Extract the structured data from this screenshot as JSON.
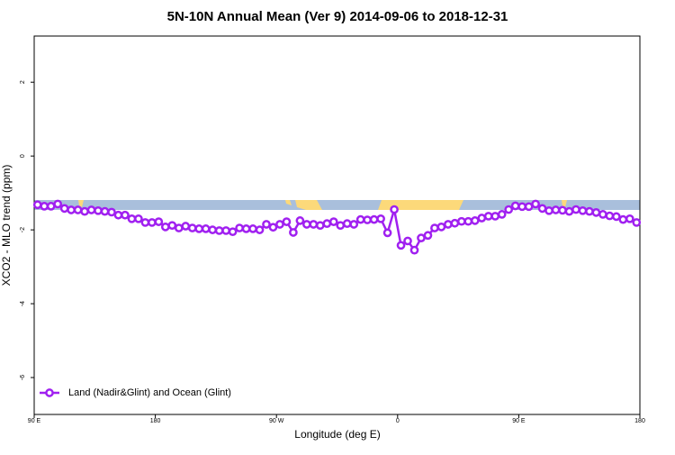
{
  "chart_data": {
    "type": "line",
    "title": "5N-10N Annual Mean (Ver 9)   2014-09-06 to 2018-12-31",
    "xlabel": "Longitude (deg E)",
    "ylabel": "XCO2 - MLO trend (ppm)",
    "xlim": [
      90,
      540
    ],
    "ylim": [
      -7,
      3.25
    ],
    "xticks": [
      {
        "value": 90,
        "label": "90 E"
      },
      180,
      {
        "value": 270,
        "label": "90 W"
      },
      {
        "value": 360,
        "label": "0"
      },
      {
        "value": 450,
        "label": "90 E"
      },
      {
        "value": 540,
        "label": "180"
      }
    ],
    "yticks": [
      -6,
      -4,
      -2,
      0,
      2
    ],
    "legend": "lower left",
    "x": [
      92.5,
      97.5,
      102.5,
      107.5,
      112.5,
      117.5,
      122.5,
      127.5,
      132.5,
      137.5,
      142.5,
      147.5,
      152.5,
      157.5,
      162.5,
      167.5,
      172.5,
      177.5,
      182.5,
      187.5,
      192.5,
      197.5,
      202.5,
      207.5,
      212.5,
      217.5,
      222.5,
      227.5,
      232.5,
      237.5,
      242.5,
      247.5,
      252.5,
      257.5,
      262.5,
      267.5,
      272.5,
      277.5,
      282.5,
      287.5,
      292.5,
      297.5,
      302.5,
      307.5,
      312.5,
      317.5,
      322.5,
      327.5,
      332.5,
      337.5,
      342.5,
      347.5,
      352.5,
      357.5,
      362.5,
      367.5,
      372.5,
      377.5,
      382.5,
      387.5,
      392.5,
      397.5,
      402.5,
      407.5,
      412.5,
      417.5,
      422.5,
      427.5,
      432.5,
      437.5,
      442.5,
      447.5,
      452.5,
      457.5,
      462.5,
      467.5,
      472.5,
      477.5,
      482.5,
      487.5,
      492.5,
      497.5,
      502.5,
      507.5,
      512.5,
      517.5,
      522.5,
      527.5,
      532.5,
      537.5
    ],
    "series": [
      {
        "name": "Land (Nadir&Glint) and Ocean (Glint)",
        "color": "#a020f0",
        "values": [
          -1.32,
          -1.36,
          -1.36,
          -1.3,
          -1.42,
          -1.46,
          -1.46,
          -1.5,
          -1.46,
          -1.48,
          -1.5,
          -1.52,
          -1.6,
          -1.6,
          -1.7,
          -1.7,
          -1.8,
          -1.8,
          -1.78,
          -1.92,
          -1.88,
          -1.95,
          -1.9,
          -1.95,
          -1.97,
          -1.97,
          -2.0,
          -2.02,
          -2.02,
          -2.05,
          -1.95,
          -1.97,
          -1.97,
          -2.0,
          -1.85,
          -1.93,
          -1.85,
          -1.78,
          -2.07,
          -1.75,
          -1.85,
          -1.85,
          -1.88,
          -1.83,
          -1.78,
          -1.88,
          -1.83,
          -1.85,
          -1.72,
          -1.73,
          -1.72,
          -1.7,
          -2.08,
          -1.45,
          -2.42,
          -2.3,
          -2.55,
          -2.22,
          -2.15,
          -1.95,
          -1.92,
          -1.85,
          -1.82,
          -1.77,
          -1.77,
          -1.75,
          -1.68,
          -1.63,
          -1.63,
          -1.58,
          -1.45,
          -1.35,
          -1.37,
          -1.37,
          -1.3,
          -1.42,
          -1.48,
          -1.46,
          -1.47,
          -1.5,
          -1.45,
          -1.48,
          -1.5,
          -1.53,
          -1.58,
          -1.62,
          -1.64,
          -1.72,
          -1.7,
          -1.8
        ]
      }
    ]
  }
}
